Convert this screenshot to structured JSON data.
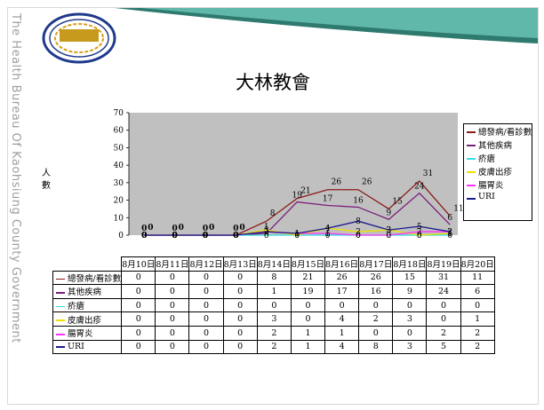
{
  "sidebar_text": "The Health Bureau Of Kaohsiung County Government",
  "chart_data": {
    "type": "line",
    "title": "大林教會",
    "ylabel": "人數",
    "xlabel": "",
    "ylim": [
      0,
      70
    ],
    "yticks": [
      0,
      10,
      20,
      30,
      40,
      50,
      60,
      70
    ],
    "grid": false,
    "legend_position": "right",
    "background": "#c0c0c0",
    "categories": [
      "8月10日",
      "8月11日",
      "8月12日",
      "8月13日",
      "8月14日",
      "8月15日",
      "8月16日",
      "8月17日",
      "8月18日",
      "8月19日",
      "8月20日"
    ],
    "series": [
      {
        "name": "總發病/看診數",
        "color": "#8b1a1a",
        "values": [
          0,
          0,
          0,
          0,
          8,
          21,
          26,
          26,
          15,
          31,
          11
        ]
      },
      {
        "name": "其他疾病",
        "color": "#7a1f7a",
        "values": [
          0,
          0,
          0,
          0,
          1,
          19,
          17,
          16,
          9,
          24,
          6
        ]
      },
      {
        "name": "疥瘡",
        "color": "#33e0e0",
        "values": [
          0,
          0,
          0,
          0,
          0,
          0,
          0,
          0,
          0,
          0,
          0
        ]
      },
      {
        "name": "皮膚出疹",
        "color": "#f0e000",
        "values": [
          0,
          0,
          0,
          0,
          3,
          0,
          4,
          2,
          3,
          0,
          1
        ]
      },
      {
        "name": "腸胃炎",
        "color": "#ff33ff",
        "values": [
          0,
          0,
          0,
          0,
          2,
          1,
          1,
          0,
          0,
          2,
          2
        ]
      },
      {
        "name": "URI",
        "color": "#1a1a8c",
        "values": [
          0,
          0,
          0,
          0,
          2,
          1,
          4,
          8,
          3,
          5,
          2
        ]
      }
    ]
  }
}
